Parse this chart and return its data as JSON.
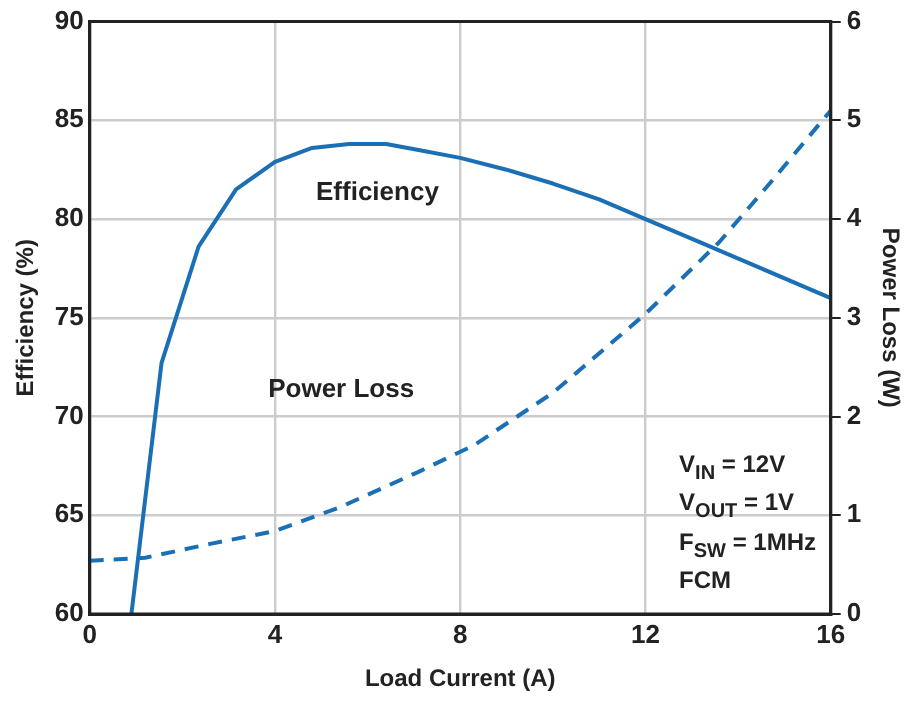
{
  "chart_data": {
    "type": "line",
    "xlabel": "Load Current (A)",
    "ylabel": "Efficiency (%)",
    "y2label": "Power Loss (W)",
    "xlim": [
      0,
      16
    ],
    "xticks": [
      0,
      4,
      8,
      12,
      16
    ],
    "ylim": [
      60,
      90
    ],
    "yticks": [
      60,
      65,
      70,
      75,
      80,
      85,
      90
    ],
    "y2lim": [
      0,
      6
    ],
    "y2ticks": [
      0,
      1,
      2,
      3,
      4,
      5,
      6
    ],
    "grid": true,
    "marker": "none",
    "annotations": [
      "V$_{IN}$ = 12V",
      "V$_{OUT}$ = 1V",
      "F$_{SW}$ = 1MHz",
      "FCM"
    ],
    "series": [
      {
        "name": "Efficiency",
        "color": "#1a6fb5",
        "line_style": "solid",
        "x": [
          0.9,
          1.55,
          2.35,
          3.16,
          4,
          4.8,
          5.6,
          6.4,
          7.1,
          8,
          9,
          10,
          11,
          12,
          13.4,
          14.5,
          16
        ],
        "values": [
          60,
          72.7,
          78.6,
          81.5,
          82.9,
          83.6,
          83.8,
          83.8,
          83.5,
          83.1,
          82.5,
          81.8,
          81,
          80,
          78.6,
          77.5,
          76
        ]
      },
      {
        "name": "Power Loss",
        "color": "#1a6fb5",
        "line_style": "dashed",
        "axis": "y2",
        "x": [
          0,
          1.2,
          2.6,
          4,
          5.4,
          7.1,
          8.3,
          10,
          12,
          13.6,
          14.7,
          16
        ],
        "values": [
          0.54,
          0.57,
          0.71,
          0.84,
          1.08,
          1.44,
          1.71,
          2.24,
          3.04,
          3.77,
          4.37,
          5.1
        ]
      }
    ]
  }
}
